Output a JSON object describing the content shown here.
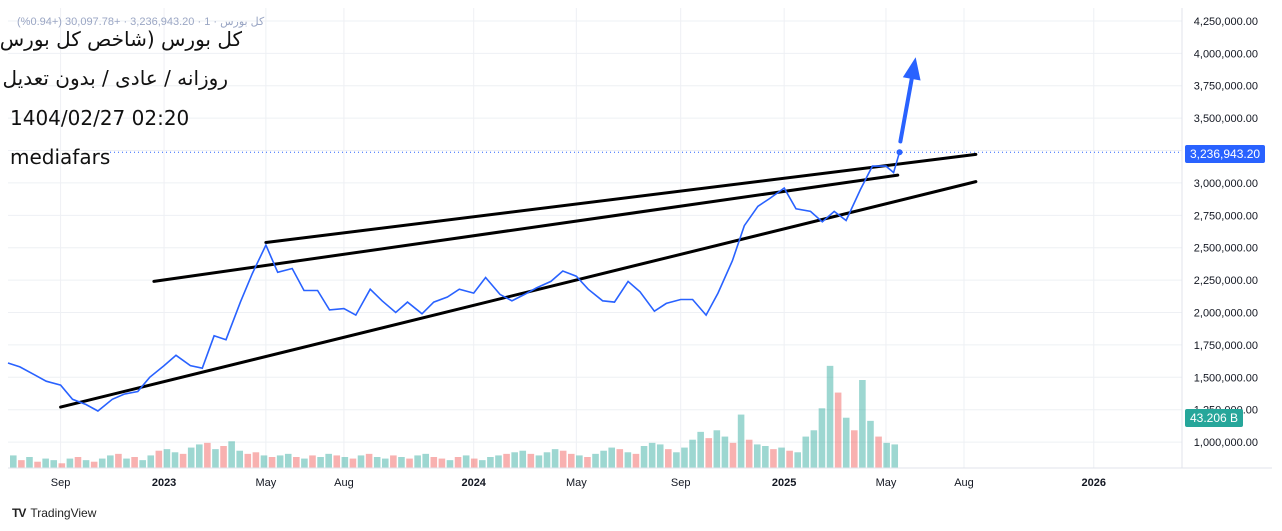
{
  "header": {
    "title_fa": "کل بورس (شاخص کل بورس)",
    "settings_fa": "روزانه / عادی / بدون تعدیل",
    "datetime": "1404/02/27 02:20",
    "source": "mediafars",
    "quote_line": "کل بورس · 1 · 3,236,943.20 · +30,097.78 (+0.94%)"
  },
  "footer": {
    "brand": "TradingView",
    "logo": "tradingview-logo"
  },
  "colors": {
    "price_line": "#2962ff",
    "trendline": "#000000",
    "vol_up": "#26a69a",
    "vol_down": "#ef5350",
    "grid": "#eef0f4"
  },
  "chart_data": {
    "type": "line",
    "y_axis": {
      "ticks": [
        1000000,
        1250000,
        1500000,
        1750000,
        2000000,
        2250000,
        2500000,
        2750000,
        3000000,
        3250000,
        3500000,
        3750000,
        4000000,
        4250000
      ],
      "tick_labels": [
        "1,000,000.00",
        "1,250,000.00",
        "1,500,000.00",
        "1,750,000.00",
        "2,000,000.00",
        "2,250,000.00",
        "2,500,000.00",
        "2,750,000.00",
        "3,000,000.00",
        "3,250,000.00",
        "3,500,000.00",
        "3,750,000.00",
        "4,000,000.00",
        "4,250,000.00"
      ],
      "ylim": [
        800000,
        4350000
      ]
    },
    "x_axis": {
      "tick_labels": [
        "Sep",
        "2023",
        "May",
        "Aug",
        "2024",
        "May",
        "Sep",
        "2025",
        "May",
        "Aug",
        "2026"
      ],
      "tick_dates": [
        "2022-09-01",
        "2023-01-01",
        "2023-05-01",
        "2023-08-01",
        "2024-01-01",
        "2024-05-01",
        "2024-09-01",
        "2025-01-01",
        "2025-05-01",
        "2025-08-01",
        "2026-01-01"
      ],
      "xlim": [
        "2022-07-01",
        "2026-04-15"
      ]
    },
    "grid": true,
    "series": [
      {
        "type": "line",
        "points": [
          [
            "2022-07-01",
            1610000
          ],
          [
            "2022-07-15",
            1580000
          ],
          [
            "2022-08-01",
            1520000
          ],
          [
            "2022-08-15",
            1470000
          ],
          [
            "2022-09-01",
            1440000
          ],
          [
            "2022-09-15",
            1330000
          ],
          [
            "2022-10-01",
            1290000
          ],
          [
            "2022-10-15",
            1240000
          ],
          [
            "2022-11-01",
            1330000
          ],
          [
            "2022-11-15",
            1370000
          ],
          [
            "2022-12-01",
            1390000
          ],
          [
            "2022-12-15",
            1500000
          ],
          [
            "2023-01-01",
            1590000
          ],
          [
            "2023-01-15",
            1670000
          ],
          [
            "2023-02-01",
            1590000
          ],
          [
            "2023-02-15",
            1570000
          ],
          [
            "2023-03-01",
            1820000
          ],
          [
            "2023-03-15",
            1790000
          ],
          [
            "2023-04-01",
            2080000
          ],
          [
            "2023-04-15",
            2300000
          ],
          [
            "2023-05-01",
            2520000
          ],
          [
            "2023-05-15",
            2310000
          ],
          [
            "2023-06-01",
            2340000
          ],
          [
            "2023-06-15",
            2170000
          ],
          [
            "2023-07-01",
            2170000
          ],
          [
            "2023-07-15",
            2020000
          ],
          [
            "2023-08-01",
            2030000
          ],
          [
            "2023-08-15",
            1980000
          ],
          [
            "2023-09-01",
            2180000
          ],
          [
            "2023-09-15",
            2090000
          ],
          [
            "2023-10-01",
            2000000
          ],
          [
            "2023-10-15",
            2080000
          ],
          [
            "2023-11-01",
            1990000
          ],
          [
            "2023-11-15",
            2080000
          ],
          [
            "2023-12-01",
            2120000
          ],
          [
            "2023-12-15",
            2180000
          ],
          [
            "2024-01-01",
            2150000
          ],
          [
            "2024-01-15",
            2270000
          ],
          [
            "2024-02-01",
            2140000
          ],
          [
            "2024-02-15",
            2090000
          ],
          [
            "2024-03-01",
            2140000
          ],
          [
            "2024-03-15",
            2190000
          ],
          [
            "2024-04-01",
            2240000
          ],
          [
            "2024-04-15",
            2320000
          ],
          [
            "2024-05-01",
            2280000
          ],
          [
            "2024-05-15",
            2180000
          ],
          [
            "2024-06-01",
            2090000
          ],
          [
            "2024-06-15",
            2080000
          ],
          [
            "2024-07-01",
            2240000
          ],
          [
            "2024-07-15",
            2160000
          ],
          [
            "2024-08-01",
            2010000
          ],
          [
            "2024-08-15",
            2070000
          ],
          [
            "2024-09-01",
            2100000
          ],
          [
            "2024-09-15",
            2100000
          ],
          [
            "2024-10-01",
            1980000
          ],
          [
            "2024-10-15",
            2150000
          ],
          [
            "2024-11-01",
            2400000
          ],
          [
            "2024-11-15",
            2670000
          ],
          [
            "2024-12-01",
            2820000
          ],
          [
            "2024-12-15",
            2880000
          ],
          [
            "2025-01-01",
            2960000
          ],
          [
            "2025-01-15",
            2800000
          ],
          [
            "2025-02-01",
            2780000
          ],
          [
            "2025-02-15",
            2700000
          ],
          [
            "2025-03-01",
            2780000
          ],
          [
            "2025-03-15",
            2710000
          ],
          [
            "2025-04-01",
            2950000
          ],
          [
            "2025-04-15",
            3130000
          ],
          [
            "2025-05-01",
            3130000
          ],
          [
            "2025-05-10",
            3080000
          ],
          [
            "2025-05-17",
            3236943.2
          ]
        ]
      }
    ],
    "volume_series": {
      "last_value_label": "43.206 B",
      "bars": [
        0.8,
        0.5,
        0.7,
        0.4,
        0.6,
        0.5,
        0.3,
        0.6,
        0.7,
        0.5,
        0.4,
        0.6,
        0.8,
        0.9,
        0.6,
        0.7,
        0.5,
        0.8,
        1.1,
        1.2,
        1.0,
        0.9,
        1.3,
        1.5,
        1.6,
        1.2,
        1.4,
        1.7,
        1.1,
        0.9,
        1.0,
        0.8,
        0.7,
        0.8,
        0.9,
        0.7,
        0.6,
        0.8,
        0.7,
        0.9,
        0.8,
        0.7,
        0.6,
        0.8,
        0.9,
        0.7,
        0.6,
        0.8,
        0.7,
        0.6,
        0.8,
        0.9,
        0.7,
        0.6,
        0.5,
        0.7,
        0.8,
        0.6,
        0.5,
        0.7,
        0.8,
        0.9,
        1.0,
        1.1,
        0.9,
        0.8,
        1.0,
        1.2,
        1.1,
        0.9,
        0.8,
        0.7,
        0.9,
        1.1,
        1.3,
        1.2,
        1.0,
        0.9,
        1.4,
        1.6,
        1.5,
        1.2,
        1.0,
        1.3,
        1.8,
        2.3,
        1.9,
        2.4,
        2.0,
        1.6,
        3.4,
        1.8,
        1.5,
        1.4,
        1.2,
        1.3,
        1.1,
        1.0,
        2.0,
        2.4,
        3.8,
        6.5,
        4.8,
        3.2,
        2.4,
        5.6,
        3.0,
        2.0,
        1.6,
        1.5
      ],
      "up_flags": [
        1,
        0,
        1,
        0,
        1,
        1,
        0,
        1,
        0,
        1,
        0,
        1,
        1,
        0,
        1,
        0,
        1,
        1,
        0,
        1,
        1,
        0,
        1,
        1,
        0,
        1,
        0,
        1,
        1,
        0,
        0,
        1,
        0,
        1,
        1,
        0,
        1,
        0,
        1,
        1,
        0,
        1,
        0,
        1,
        0,
        1,
        1,
        0,
        1,
        0,
        1,
        1,
        0,
        0,
        1,
        0,
        1,
        0,
        1,
        1,
        1,
        0,
        1,
        1,
        0,
        1,
        1,
        1,
        0,
        0,
        1,
        0,
        1,
        1,
        1,
        0,
        1,
        0,
        1,
        1,
        1,
        0,
        1,
        1,
        1,
        1,
        0,
        1,
        1,
        0,
        1,
        0,
        1,
        1,
        0,
        1,
        0,
        1,
        1,
        1,
        1,
        1,
        0,
        1,
        0,
        1,
        1,
        0,
        1,
        1
      ],
      "ylim_b": [
        0,
        7
      ]
    },
    "trendlines": [
      {
        "name": "upper-channel-line",
        "from": [
          "2023-05-01",
          2540000
        ],
        "to": [
          "2025-08-15",
          3220000
        ]
      },
      {
        "name": "middle-channel-line",
        "from": [
          "2022-12-20",
          2240000
        ],
        "to": [
          "2025-05-15",
          3060000
        ]
      },
      {
        "name": "lower-support-line",
        "from": [
          "2022-09-01",
          1270000
        ],
        "to": [
          "2025-08-15",
          3010000
        ]
      }
    ],
    "annotation_arrow": {
      "from": [
        "2025-05-18",
        3320000
      ],
      "to": [
        "2025-06-05",
        3970000
      ]
    },
    "last_price_label": "3,236,943.20",
    "last_price": 3236943.2
  }
}
